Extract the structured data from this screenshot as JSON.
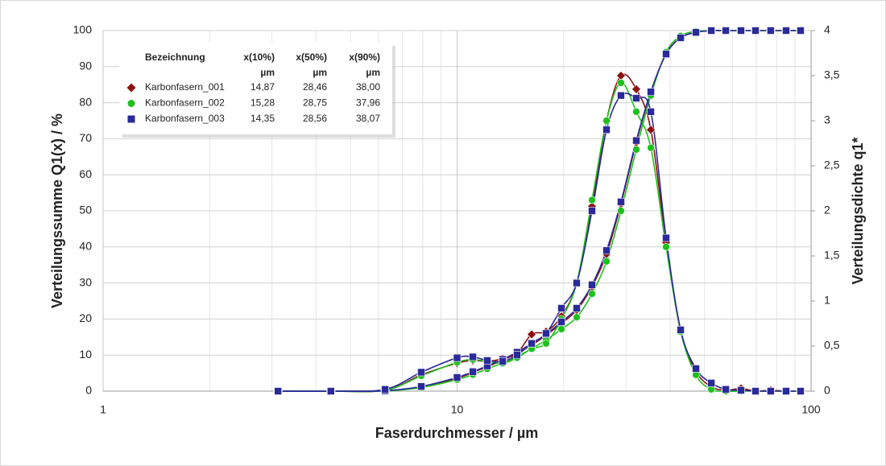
{
  "chart_data": {
    "type": "line",
    "xscale": "log",
    "x_label": "Faserdurchmesser / µm",
    "y_label": "Verteilungssumme Q1(x) / %",
    "y2_label": "Verteilungsdichte q1*",
    "xlim": [
      1,
      100
    ],
    "xticks": [
      1,
      10,
      100
    ],
    "x_minor_grid": [
      2,
      3,
      4,
      5,
      6,
      7,
      8,
      9,
      20,
      30,
      40,
      50,
      60,
      70,
      80,
      90
    ],
    "ylim": [
      0,
      100
    ],
    "yticks": [
      0,
      10,
      20,
      30,
      40,
      50,
      60,
      70,
      80,
      90,
      100
    ],
    "y2lim": [
      0,
      4
    ],
    "y2ticks": [
      0,
      {
        "value": 0.5,
        "label": "0,5"
      },
      1,
      {
        "value": 1.5,
        "label": "1,5"
      },
      2,
      {
        "value": 2.5,
        "label": "2,5"
      },
      3,
      {
        "value": 3.5,
        "label": "3,5"
      },
      4
    ],
    "grid": true,
    "legend_header": [
      "Bezeichnung",
      "x(10%)",
      "x(50%)",
      "x(90%)"
    ],
    "legend_units": [
      "µm",
      "µm",
      "µm"
    ],
    "x": [
      3.12,
      4.4,
      6.26,
      7.92,
      10.0,
      11.08,
      12.17,
      13.45,
      14.77,
      16.24,
      17.84,
      19.71,
      21.77,
      24.05,
      26.43,
      29.04,
      32.08,
      35.26,
      38.94,
      42.81,
      47.28,
      52.24,
      57.4,
      63.39,
      69.66,
      76.9,
      85.0,
      93.4
    ],
    "series": [
      {
        "name": "Karbonfasern_001",
        "color": "#8b1010",
        "marker": "diamond",
        "stats": [
          "14,87",
          "28,46",
          "38,00"
        ],
        "cumulative": [
          0,
          0,
          0.1,
          1.2,
          3.6,
          5.2,
          6.8,
          8.6,
          10.5,
          12.8,
          15.5,
          18.8,
          22.5,
          29,
          38,
          52,
          69,
          83,
          93.5,
          98,
          99.5,
          100,
          100,
          100,
          100,
          100,
          100,
          100
        ],
        "density": [
          0,
          0,
          0.01,
          0.18,
          0.31,
          0.34,
          0.33,
          0.36,
          0.42,
          0.63,
          0.66,
          0.83,
          1.2,
          2.05,
          3.0,
          3.5,
          3.35,
          2.9,
          1.65,
          0.67,
          0.22,
          0.05,
          0.01,
          0.03,
          0,
          0.01,
          0,
          0
        ]
      },
      {
        "name": "Karbonfasern_002",
        "color": "#1ec01e",
        "marker": "circle",
        "stats": [
          "15,28",
          "28,75",
          "37,96"
        ],
        "cumulative": [
          0,
          0,
          0.05,
          1.0,
          3.2,
          4.6,
          6.2,
          7.8,
          9.6,
          11.8,
          14.2,
          17.2,
          20.5,
          27,
          36,
          50,
          67,
          82,
          94,
          98.5,
          99.8,
          100,
          100,
          100,
          100,
          100,
          100,
          100
        ],
        "density": [
          0,
          0,
          0.01,
          0.17,
          0.32,
          0.35,
          0.33,
          0.31,
          0.37,
          0.47,
          0.53,
          0.8,
          1.2,
          2.12,
          3.0,
          3.42,
          3.1,
          2.7,
          1.6,
          0.66,
          0.18,
          0.02,
          0,
          0,
          0,
          0,
          0,
          0
        ]
      },
      {
        "name": "Karbonfasern_003",
        "color": "#2a2a9a",
        "marker": "square",
        "stats": [
          "14,35",
          "28,56",
          "38,07"
        ],
        "cumulative": [
          0,
          0,
          0.1,
          1.3,
          3.8,
          5.4,
          7.0,
          8.8,
          10.8,
          13.2,
          15.8,
          19.2,
          23,
          29.5,
          39,
          52.5,
          69.5,
          83,
          93.5,
          98,
          99.5,
          100,
          100,
          100,
          100,
          100,
          100,
          100
        ],
        "density": [
          0,
          0,
          0.02,
          0.21,
          0.37,
          0.38,
          0.34,
          0.33,
          0.4,
          0.53,
          0.64,
          0.92,
          1.2,
          2.0,
          2.9,
          3.28,
          3.25,
          3.1,
          1.7,
          0.68,
          0.25,
          0.09,
          0.02,
          0.01,
          0,
          0,
          0,
          0
        ]
      }
    ]
  }
}
